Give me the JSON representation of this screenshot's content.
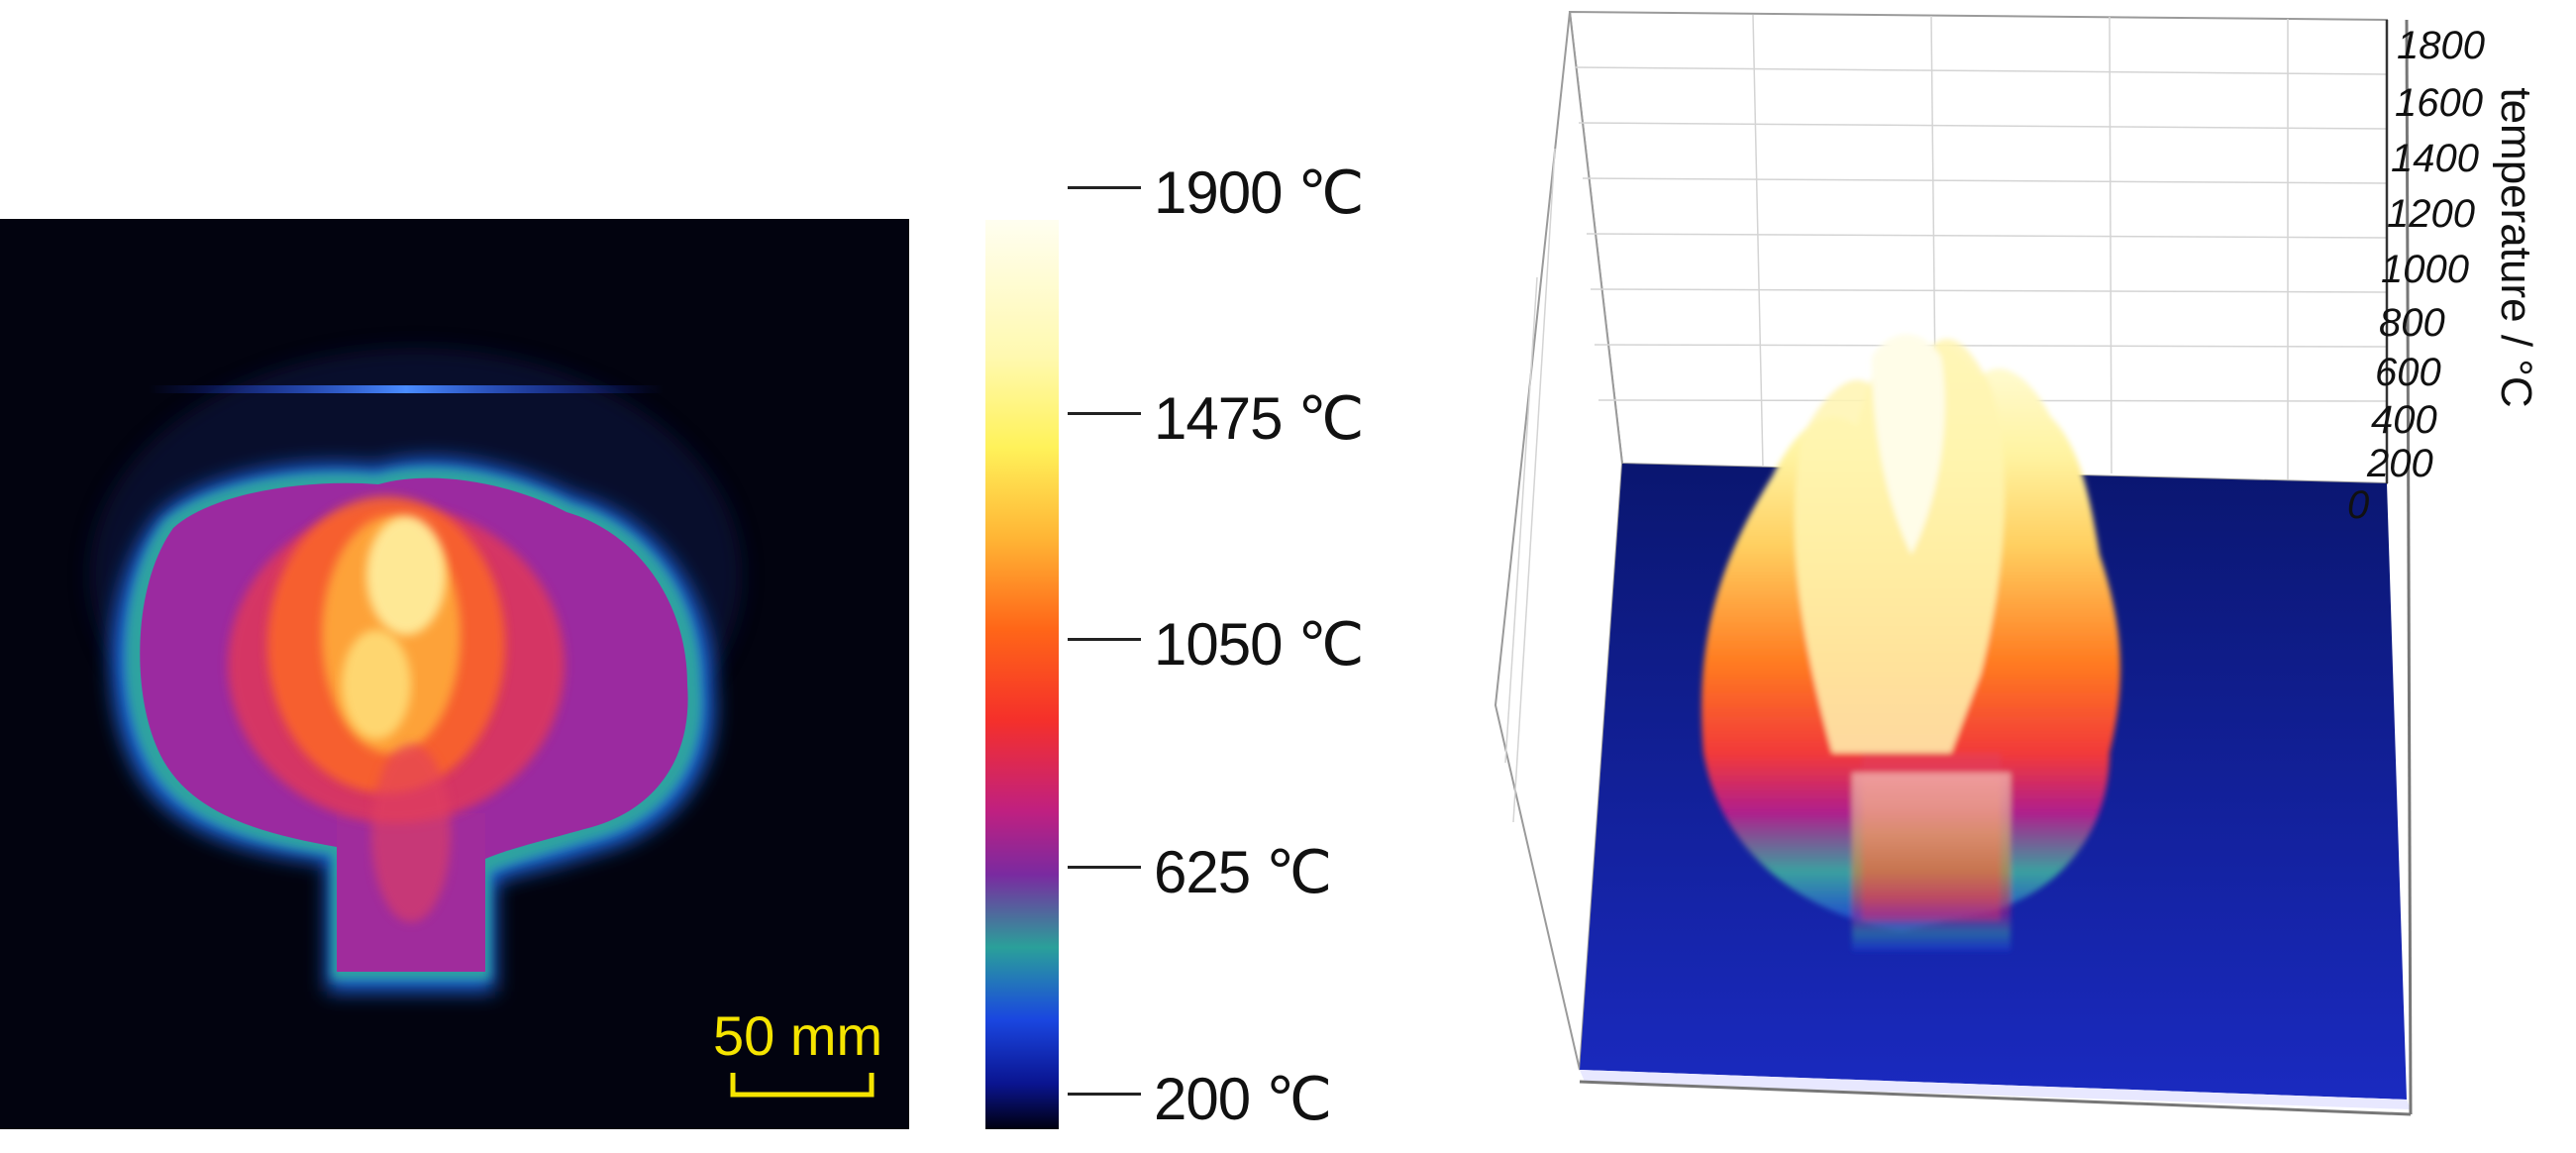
{
  "figure": {
    "left_panel": {
      "scale_bar": "50 mm"
    },
    "colorbar": {
      "ticks": [
        "1900 ℃",
        "1475 ℃",
        "1050 ℃",
        "625 ℃",
        "200 ℃"
      ]
    },
    "surface_plot": {
      "z_axis_label": "temperature / °C",
      "z_ticks": [
        "1800",
        "1600",
        "1400",
        "1200",
        "1000",
        "800",
        "600",
        "400",
        "200",
        "0"
      ]
    }
  },
  "colors": {
    "background_dark": "#02030f",
    "scale_yellow": "#f5e400",
    "floor_blue": "#0d1a8a"
  }
}
